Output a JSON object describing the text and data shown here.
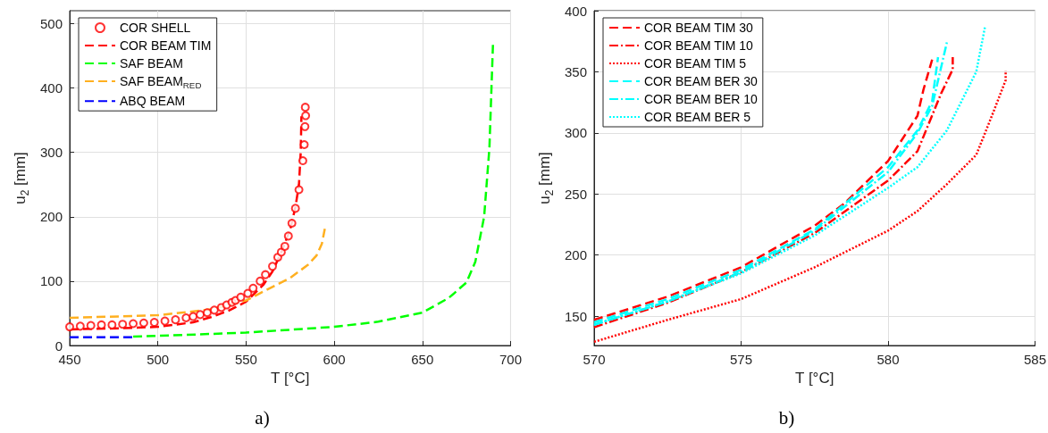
{
  "chart_data": [
    {
      "type": "line",
      "title": "a)",
      "xlabel": "T [°C]",
      "ylabel": "u$_{2}$ [mm]",
      "xlim": [
        450,
        700
      ],
      "xticks": [
        450,
        500,
        550,
        600,
        650,
        700
      ],
      "ylim": [
        0,
        520
      ],
      "yticks": [
        0,
        100,
        200,
        300,
        400,
        500
      ],
      "grid": true,
      "legend": "top left",
      "series": [
        {
          "name": "COR SHELL",
          "type": "scatter",
          "marker": "circle",
          "color": "#ff0000",
          "x": [
            450,
            456,
            462,
            468,
            474,
            480,
            486,
            492,
            498,
            504,
            510,
            516,
            520,
            524,
            528,
            532,
            536,
            539,
            542,
            544,
            547,
            551,
            554,
            558,
            561,
            565,
            568,
            570,
            572,
            574,
            576,
            578,
            580,
            582.2,
            583,
            583.4,
            583.8,
            583.6
          ],
          "values": [
            29,
            30,
            31,
            32,
            32,
            33,
            34,
            35,
            36,
            38,
            40,
            43,
            45,
            48,
            51,
            55,
            59,
            63,
            67,
            70,
            75,
            81,
            89,
            100,
            110,
            123,
            137,
            145,
            154,
            170,
            190,
            213,
            242,
            287,
            312,
            340,
            357,
            370
          ]
        },
        {
          "name": "COR BEAM TIM",
          "type": "line",
          "marker": "none",
          "line_style": "dashed",
          "color": "#ff0000",
          "x": [
            450,
            480,
            500,
            520,
            530,
            540,
            550,
            560,
            565,
            570,
            575,
            578,
            580,
            581,
            581.4
          ],
          "values": [
            25,
            27,
            29,
            36,
            44,
            54,
            68,
            95,
            115,
            145,
            180,
            215,
            250,
            300,
            356
          ]
        },
        {
          "name": "SAF BEAM",
          "type": "line",
          "marker": "none",
          "line_style": "dashed",
          "color": "#00ff00",
          "x": [
            486,
            500,
            550,
            600,
            625,
            650,
            665,
            675,
            680,
            685,
            688,
            690
          ],
          "values": [
            14,
            15,
            20,
            29,
            37,
            51,
            74,
            98,
            130,
            200,
            307,
            467
          ]
        },
        {
          "name": "SAF BEAM$_{RED}$",
          "type": "line",
          "marker": "none",
          "line_style": "dashed",
          "color": "#ffb020",
          "x": [
            450,
            500,
            530,
            550,
            565,
            575,
            585,
            590,
            593,
            595
          ],
          "values": [
            43,
            47,
            56,
            70,
            91,
            105,
            125,
            140,
            158,
            186
          ]
        },
        {
          "name": "ABQ BEAM",
          "type": "line",
          "marker": "none",
          "line_style": "dashed",
          "color": "#0000ff",
          "x": [
            450,
            486
          ],
          "values": [
            13,
            13
          ]
        }
      ]
    },
    {
      "type": "line",
      "title": "b)",
      "xlabel": "T [°C]",
      "ylabel": "u$_{2}$ [mm]",
      "xlim": [
        570,
        585
      ],
      "xticks": [
        570,
        575,
        580,
        585
      ],
      "ylim": [
        126,
        400
      ],
      "yticks": [
        150,
        200,
        250,
        300,
        350,
        400
      ],
      "grid": true,
      "legend": "top left",
      "marker": "none",
      "series": [
        {
          "name": "COR BEAM TIM 30",
          "line_style": "dashed",
          "color": "#ff0000",
          "x": [
            570,
            572.5,
            575,
            577.5,
            578.5,
            580,
            581,
            581.2,
            581.5
          ],
          "values": [
            147,
            166,
            190,
            224,
            242,
            277,
            314,
            335,
            360
          ]
        },
        {
          "name": "COR BEAM TIM 10",
          "line_style": "dashdot",
          "color": "#ff0000",
          "x": [
            570,
            572.5,
            575,
            577.5,
            580,
            581,
            581.8,
            582.2,
            582.2
          ],
          "values": [
            141,
            161,
            186,
            218,
            261,
            285,
            332,
            352,
            362
          ]
        },
        {
          "name": "COR BEAM TIM 5",
          "line_style": "dotted",
          "color": "#ff0000",
          "x": [
            570,
            572.5,
            575,
            577.5,
            580,
            581,
            582,
            583,
            583.5,
            584,
            584
          ],
          "values": [
            129,
            147,
            164,
            190,
            220,
            236,
            258,
            282,
            312,
            343,
            351
          ]
        },
        {
          "name": "COR BEAM BER 30",
          "line_style": "dashed",
          "color": "#00ffff",
          "x": [
            570,
            572.5,
            575,
            577.5,
            580,
            581,
            581.5,
            581.7
          ],
          "values": [
            145,
            164,
            188,
            221,
            272,
            302,
            326,
            362
          ]
        },
        {
          "name": "COR BEAM BER 10",
          "line_style": "dashdot",
          "color": "#00ffff",
          "x": [
            570,
            572.5,
            575,
            577.5,
            580,
            581,
            581.5,
            582
          ],
          "values": [
            143,
            162,
            186,
            220,
            268,
            300,
            322,
            374
          ]
        },
        {
          "name": "COR BEAM BER 5",
          "line_style": "dotted",
          "color": "#00ffff",
          "x": [
            570,
            572.5,
            575,
            577.5,
            580,
            581,
            582,
            583,
            583.3
          ],
          "values": [
            143,
            162,
            185,
            216,
            255,
            272,
            302,
            350,
            387
          ]
        }
      ]
    }
  ]
}
